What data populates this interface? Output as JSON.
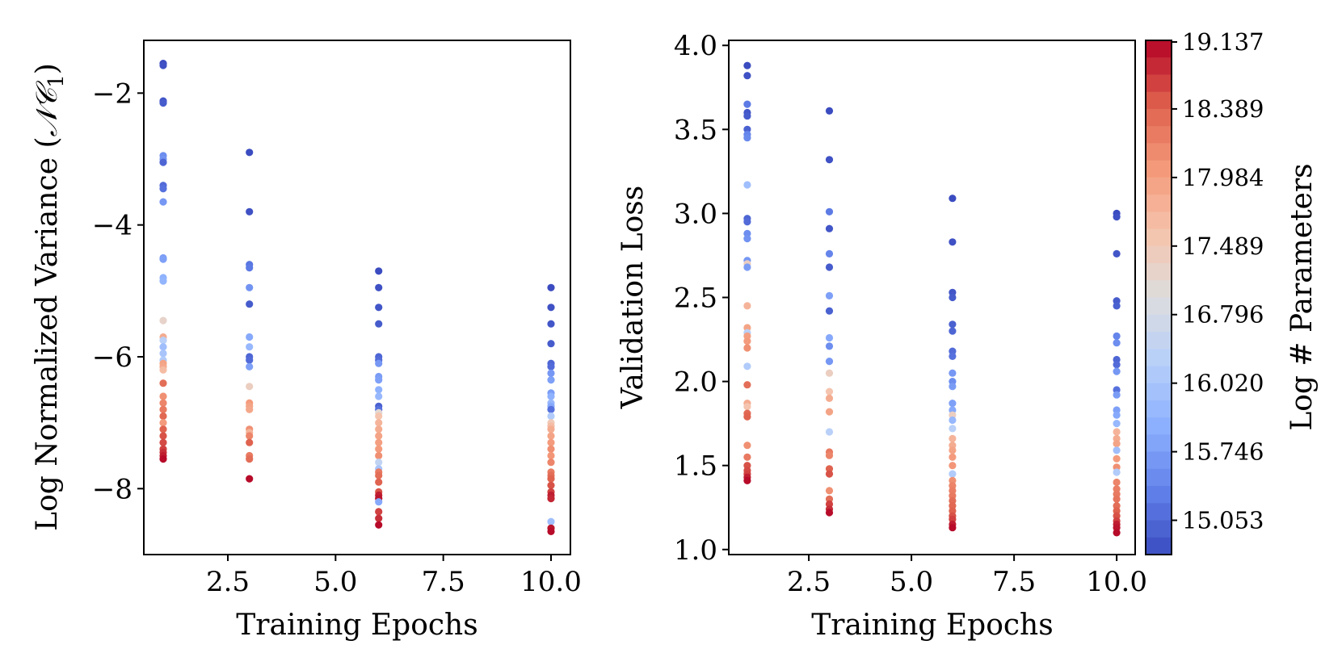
{
  "colormap": "coolwarm",
  "chart_data": [
    {
      "type": "scatter",
      "title": "",
      "xlabel": "Training Epochs",
      "ylabel": "Log Normalized Variance (NC1)",
      "ylabel_parts": {
        "prefix": "Log Normalized Variance (",
        "math": "𝒩𝒞",
        "subscript": "1",
        "suffix": ")"
      },
      "xlim": [
        0.55,
        10.45
      ],
      "ylim": [
        -9.0,
        -1.2
      ],
      "xticks": [
        2.5,
        5.0,
        7.5,
        10.0
      ],
      "xtick_labels": [
        "2.5",
        "5.0",
        "7.5",
        "10.0"
      ],
      "yticks": [
        -8,
        -6,
        -4,
        -2
      ],
      "ytick_labels": [
        "−8",
        "−6",
        "−4",
        "−2"
      ],
      "grid": false,
      "series": [
        {
          "x": 1,
          "points": [
            [
              -1.55,
              15.05
            ],
            [
              -1.58,
              15.1
            ],
            [
              -2.12,
              15.15
            ],
            [
              -2.15,
              15.2
            ],
            [
              -2.95,
              15.7
            ],
            [
              -3.0,
              15.75
            ],
            [
              -3.05,
              15.3
            ],
            [
              -3.4,
              15.35
            ],
            [
              -3.45,
              15.4
            ],
            [
              -3.65,
              15.8
            ],
            [
              -4.5,
              15.85
            ],
            [
              -4.52,
              15.9
            ],
            [
              -4.8,
              16.1
            ],
            [
              -4.85,
              16.15
            ],
            [
              -5.45,
              17.3
            ],
            [
              -5.7,
              17.9
            ],
            [
              -5.75,
              16.6
            ],
            [
              -5.85,
              16.3
            ],
            [
              -5.95,
              16.4
            ],
            [
              -6.05,
              16.5
            ],
            [
              -6.1,
              18.0
            ],
            [
              -6.15,
              17.95
            ],
            [
              -6.2,
              17.7
            ],
            [
              -6.4,
              18.5
            ],
            [
              -6.6,
              18.2
            ],
            [
              -6.7,
              18.3
            ],
            [
              -6.8,
              18.4
            ],
            [
              -6.9,
              18.55
            ],
            [
              -7.0,
              18.1
            ],
            [
              -7.1,
              18.6
            ],
            [
              -7.2,
              18.7
            ],
            [
              -7.3,
              18.75
            ],
            [
              -7.4,
              18.8
            ],
            [
              -7.45,
              18.9
            ],
            [
              -7.5,
              19.0
            ],
            [
              -7.55,
              19.1
            ]
          ]
        },
        {
          "x": 3,
          "points": [
            [
              -2.9,
              15.05
            ],
            [
              -3.8,
              15.1
            ],
            [
              -4.6,
              15.45
            ],
            [
              -4.65,
              15.5
            ],
            [
              -4.95,
              15.75
            ],
            [
              -5.2,
              15.2
            ],
            [
              -5.7,
              16.0
            ],
            [
              -5.85,
              16.2
            ],
            [
              -6.0,
              15.3
            ],
            [
              -6.05,
              15.35
            ],
            [
              -6.15,
              15.9
            ],
            [
              -6.45,
              17.4
            ],
            [
              -6.7,
              18.1
            ],
            [
              -6.75,
              18.0
            ],
            [
              -6.8,
              17.95
            ],
            [
              -7.1,
              18.2
            ],
            [
              -7.15,
              17.8
            ],
            [
              -7.2,
              18.3
            ],
            [
              -7.3,
              18.6
            ],
            [
              -7.5,
              18.4
            ],
            [
              -7.55,
              18.5
            ],
            [
              -7.85,
              19.1
            ]
          ]
        },
        {
          "x": 6,
          "points": [
            [
              -4.7,
              15.05
            ],
            [
              -4.95,
              15.1
            ],
            [
              -5.25,
              15.15
            ],
            [
              -5.5,
              15.2
            ],
            [
              -6.0,
              15.3
            ],
            [
              -6.05,
              15.35
            ],
            [
              -6.1,
              15.8
            ],
            [
              -6.3,
              15.85
            ],
            [
              -6.35,
              15.9
            ],
            [
              -6.5,
              16.1
            ],
            [
              -6.6,
              16.2
            ],
            [
              -6.75,
              15.25
            ],
            [
              -6.8,
              15.4
            ],
            [
              -6.85,
              17.2
            ],
            [
              -6.9,
              17.6
            ],
            [
              -7.0,
              17.8
            ],
            [
              -7.1,
              17.9
            ],
            [
              -7.2,
              18.0
            ],
            [
              -7.3,
              18.05
            ],
            [
              -7.4,
              18.1
            ],
            [
              -7.5,
              18.2
            ],
            [
              -7.6,
              16.7
            ],
            [
              -7.7,
              16.4
            ],
            [
              -7.75,
              18.4
            ],
            [
              -7.8,
              18.5
            ],
            [
              -7.9,
              18.6
            ],
            [
              -8.05,
              18.7
            ],
            [
              -8.1,
              19.0
            ],
            [
              -8.15,
              19.05
            ],
            [
              -8.2,
              16.0
            ],
            [
              -8.35,
              18.8
            ],
            [
              -8.45,
              18.9
            ],
            [
              -8.55,
              19.1
            ]
          ]
        },
        {
          "x": 10,
          "points": [
            [
              -4.95,
              15.05
            ],
            [
              -5.25,
              15.1
            ],
            [
              -5.5,
              15.15
            ],
            [
              -5.8,
              15.2
            ],
            [
              -6.1,
              15.3
            ],
            [
              -6.15,
              15.35
            ],
            [
              -6.25,
              15.8
            ],
            [
              -6.35,
              15.9
            ],
            [
              -6.55,
              15.85
            ],
            [
              -6.6,
              16.1
            ],
            [
              -6.7,
              16.2
            ],
            [
              -6.75,
              16.0
            ],
            [
              -6.8,
              15.4
            ],
            [
              -6.9,
              16.5
            ],
            [
              -7.0,
              17.5
            ],
            [
              -7.05,
              17.7
            ],
            [
              -7.1,
              17.9
            ],
            [
              -7.2,
              18.0
            ],
            [
              -7.3,
              18.1
            ],
            [
              -7.4,
              18.2
            ],
            [
              -7.5,
              18.15
            ],
            [
              -7.6,
              18.3
            ],
            [
              -7.75,
              18.4
            ],
            [
              -7.8,
              18.5
            ],
            [
              -7.85,
              18.6
            ],
            [
              -7.95,
              18.7
            ],
            [
              -8.05,
              18.8
            ],
            [
              -8.1,
              19.0
            ],
            [
              -8.15,
              18.95
            ],
            [
              -8.5,
              16.3
            ],
            [
              -8.6,
              19.05
            ],
            [
              -8.65,
              19.1
            ]
          ]
        }
      ]
    },
    {
      "type": "scatter",
      "title": "",
      "xlabel": "Training Epochs",
      "ylabel": "Validation Loss",
      "xlim": [
        0.55,
        10.45
      ],
      "ylim": [
        0.97,
        4.03
      ],
      "xticks": [
        2.5,
        5.0,
        7.5,
        10.0
      ],
      "xtick_labels": [
        "2.5",
        "5.0",
        "7.5",
        "10.0"
      ],
      "yticks": [
        1.0,
        1.5,
        2.0,
        2.5,
        3.0,
        3.5,
        4.0
      ],
      "ytick_labels": [
        "1.0",
        "1.5",
        "2.0",
        "2.5",
        "3.0",
        "3.5",
        "4.0"
      ],
      "grid": false,
      "series": [
        {
          "x": 1,
          "points": [
            [
              3.88,
              15.05
            ],
            [
              3.82,
              15.1
            ],
            [
              3.65,
              15.5
            ],
            [
              3.6,
              15.15
            ],
            [
              3.58,
              15.2
            ],
            [
              3.5,
              15.25
            ],
            [
              3.47,
              15.6
            ],
            [
              3.45,
              15.65
            ],
            [
              3.17,
              16.3
            ],
            [
              2.97,
              15.3
            ],
            [
              2.95,
              15.35
            ],
            [
              2.88,
              15.7
            ],
            [
              2.85,
              15.75
            ],
            [
              2.72,
              15.8
            ],
            [
              2.7,
              17.4
            ],
            [
              2.68,
              15.85
            ],
            [
              2.45,
              17.8
            ],
            [
              2.32,
              18.0
            ],
            [
              2.29,
              16.6
            ],
            [
              2.27,
              18.05
            ],
            [
              2.24,
              18.1
            ],
            [
              2.2,
              18.2
            ],
            [
              2.09,
              16.5
            ],
            [
              1.98,
              18.5
            ],
            [
              1.87,
              17.9
            ],
            [
              1.85,
              17.6
            ],
            [
              1.81,
              18.55
            ],
            [
              1.79,
              18.6
            ],
            [
              1.62,
              18.2
            ],
            [
              1.55,
              18.4
            ],
            [
              1.5,
              18.7
            ],
            [
              1.47,
              18.75
            ],
            [
              1.45,
              18.8
            ],
            [
              1.43,
              19.0
            ],
            [
              1.41,
              19.1
            ]
          ]
        },
        {
          "x": 3,
          "points": [
            [
              3.61,
              15.05
            ],
            [
              3.32,
              15.1
            ],
            [
              3.01,
              15.5
            ],
            [
              2.91,
              15.15
            ],
            [
              2.76,
              15.6
            ],
            [
              2.68,
              15.2
            ],
            [
              2.51,
              15.9
            ],
            [
              2.42,
              15.25
            ],
            [
              2.26,
              16.0
            ],
            [
              2.21,
              15.7
            ],
            [
              2.12,
              15.8
            ],
            [
              2.05,
              17.4
            ],
            [
              1.94,
              17.6
            ],
            [
              1.9,
              17.9
            ],
            [
              1.82,
              18.0
            ],
            [
              1.7,
              16.6
            ],
            [
              1.58,
              18.4
            ],
            [
              1.56,
              18.3
            ],
            [
              1.48,
              18.6
            ],
            [
              1.45,
              18.7
            ],
            [
              1.35,
              18.2
            ],
            [
              1.3,
              18.5
            ],
            [
              1.27,
              18.8
            ],
            [
              1.24,
              18.9
            ],
            [
              1.22,
              19.1
            ]
          ]
        },
        {
          "x": 6,
          "points": [
            [
              3.09,
              15.05
            ],
            [
              2.83,
              15.1
            ],
            [
              2.53,
              15.15
            ],
            [
              2.5,
              15.2
            ],
            [
              2.34,
              15.25
            ],
            [
              2.3,
              15.3
            ],
            [
              2.18,
              15.35
            ],
            [
              2.15,
              15.4
            ],
            [
              2.05,
              15.8
            ],
            [
              2.0,
              15.7
            ],
            [
              1.97,
              15.85
            ],
            [
              1.87,
              15.9
            ],
            [
              1.83,
              16.0
            ],
            [
              1.8,
              17.4
            ],
            [
              1.77,
              16.2
            ],
            [
              1.72,
              16.6
            ],
            [
              1.66,
              17.8
            ],
            [
              1.62,
              17.9
            ],
            [
              1.59,
              18.0
            ],
            [
              1.55,
              18.1
            ],
            [
              1.5,
              18.15
            ],
            [
              1.45,
              16.5
            ],
            [
              1.41,
              18.2
            ],
            [
              1.38,
              18.3
            ],
            [
              1.35,
              18.35
            ],
            [
              1.32,
              18.4
            ],
            [
              1.29,
              18.5
            ],
            [
              1.26,
              18.55
            ],
            [
              1.23,
              18.6
            ],
            [
              1.2,
              18.7
            ],
            [
              1.18,
              18.8
            ],
            [
              1.15,
              19.0
            ],
            [
              1.13,
              19.1
            ]
          ]
        },
        {
          "x": 10,
          "points": [
            [
              3.0,
              15.05
            ],
            [
              2.98,
              15.1
            ],
            [
              2.76,
              15.15
            ],
            [
              2.48,
              15.2
            ],
            [
              2.45,
              15.25
            ],
            [
              2.27,
              15.6
            ],
            [
              2.23,
              15.7
            ],
            [
              2.13,
              15.3
            ],
            [
              2.1,
              15.35
            ],
            [
              2.06,
              15.8
            ],
            [
              1.95,
              15.4
            ],
            [
              1.92,
              15.85
            ],
            [
              1.83,
              15.9
            ],
            [
              1.8,
              16.0
            ],
            [
              1.75,
              16.2
            ],
            [
              1.7,
              17.8
            ],
            [
              1.66,
              17.9
            ],
            [
              1.63,
              18.0
            ],
            [
              1.59,
              16.3
            ],
            [
              1.54,
              18.1
            ],
            [
              1.49,
              18.2
            ],
            [
              1.46,
              16.5
            ],
            [
              1.4,
              18.3
            ],
            [
              1.36,
              18.35
            ],
            [
              1.33,
              18.4
            ],
            [
              1.3,
              18.45
            ],
            [
              1.26,
              18.5
            ],
            [
              1.23,
              18.6
            ],
            [
              1.2,
              18.7
            ],
            [
              1.17,
              18.8
            ],
            [
              1.15,
              19.0
            ],
            [
              1.13,
              19.05
            ],
            [
              1.1,
              19.1
            ]
          ]
        }
      ]
    }
  ],
  "colorbar": {
    "label": "Log # Parameters",
    "tick_labels": [
      "19.137",
      "18.389",
      "17.984",
      "17.489",
      "16.796",
      "16.020",
      "15.746",
      "15.053"
    ],
    "vmin": 15.053,
    "vmax": 19.137
  }
}
